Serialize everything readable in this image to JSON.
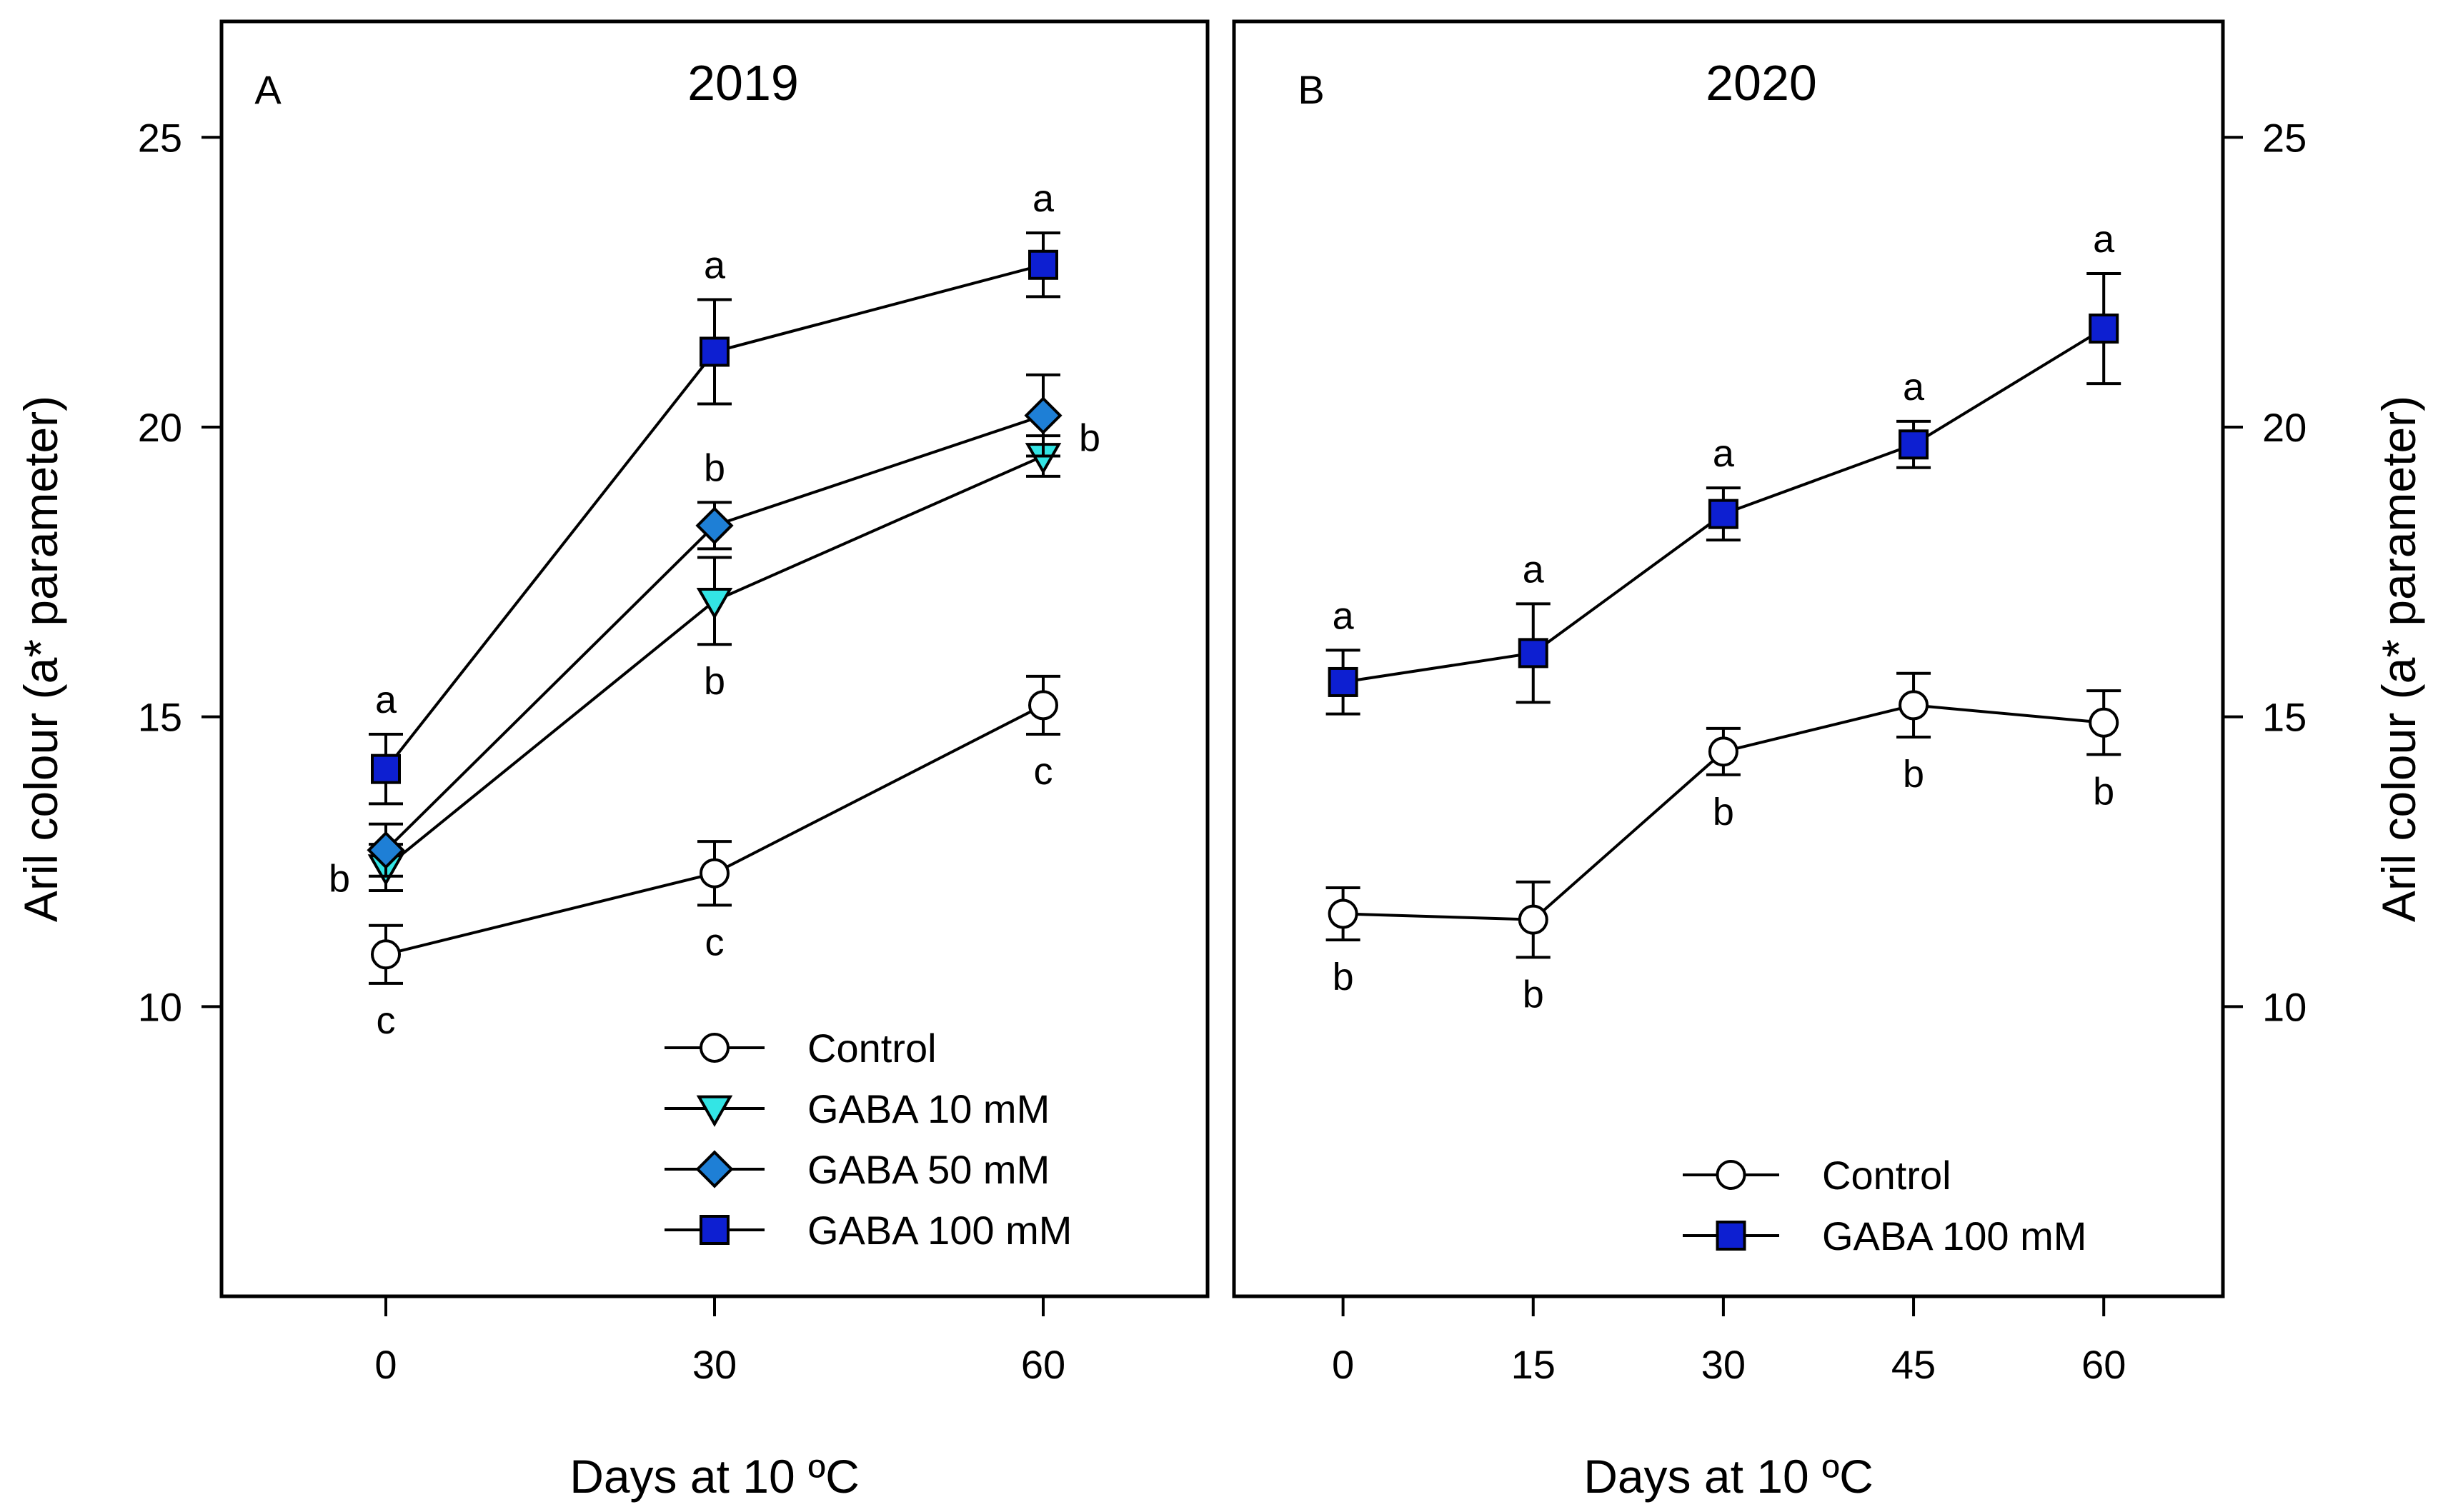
{
  "chart_data": [
    {
      "type": "line",
      "panel_label": "A",
      "title": "2019",
      "xlabel": "Days at 10 ºC",
      "ylabel": "Aril colour (a* parameter)",
      "xlim": [
        -15,
        75
      ],
      "ylim": [
        5,
        27
      ],
      "x_ticks": [
        "0",
        "30",
        "60"
      ],
      "y_ticks": [
        "10",
        "15",
        "20",
        "25"
      ],
      "grid": false,
      "legend_position": "bottom-right",
      "series": [
        {
          "name": "Control",
          "marker": "circle",
          "color": "#ffffff",
          "x": [
            0,
            30,
            60
          ],
          "y": [
            10.9,
            12.3,
            15.2
          ],
          "err": [
            0.5,
            0.55,
            0.5
          ],
          "letters": [
            "c",
            "c",
            "c"
          ]
        },
        {
          "name": "GABA 10 mM",
          "marker": "triangle-down",
          "color": "#33e5e5",
          "x": [
            0,
            30,
            60
          ],
          "y": [
            12.4,
            17.0,
            19.5
          ],
          "err": [
            0.4,
            0.75,
            0.35
          ],
          "letters": [
            "",
            "b",
            ""
          ]
        },
        {
          "name": "GABA 50 mM",
          "marker": "diamond",
          "color": "#1e7fd6",
          "x": [
            0,
            30,
            60
          ],
          "y": [
            12.7,
            18.3,
            20.2
          ],
          "err": [
            0.45,
            0.4,
            0.7
          ],
          "letters": [
            "b",
            "b",
            "b"
          ]
        },
        {
          "name": "GABA 100 mM",
          "marker": "square",
          "color": "#0d1fd1",
          "x": [
            0,
            30,
            60
          ],
          "y": [
            14.1,
            21.3,
            22.8
          ],
          "err": [
            0.6,
            0.9,
            0.55
          ],
          "letters": [
            "a",
            "a",
            "a"
          ]
        }
      ]
    },
    {
      "type": "line",
      "panel_label": "B",
      "title": "2020",
      "xlabel": "Days at 10 ºC",
      "ylabel": "Aril colour (a* parameter)",
      "xlim": [
        -8.6,
        69.4
      ],
      "ylim": [
        5,
        27
      ],
      "x_ticks": [
        "0",
        "15",
        "30",
        "45",
        "60"
      ],
      "y_ticks": [
        "10",
        "15",
        "20",
        "25"
      ],
      "grid": false,
      "legend_position": "bottom-right",
      "series": [
        {
          "name": "Control",
          "marker": "circle",
          "color": "#ffffff",
          "x": [
            0,
            15,
            30,
            45,
            60
          ],
          "y": [
            11.6,
            11.5,
            14.4,
            15.2,
            14.9
          ],
          "err": [
            0.45,
            0.65,
            0.4,
            0.55,
            0.55
          ],
          "letters": [
            "b",
            "b",
            "b",
            "b",
            "b"
          ]
        },
        {
          "name": "GABA 100 mM",
          "marker": "square",
          "color": "#0d1fd1",
          "x": [
            0,
            15,
            30,
            45,
            60
          ],
          "y": [
            15.6,
            16.1,
            18.5,
            19.7,
            21.7
          ],
          "err": [
            0.55,
            0.85,
            0.45,
            0.4,
            0.95
          ],
          "letters": [
            "a",
            "a",
            "a",
            "a",
            "a"
          ]
        }
      ]
    }
  ]
}
